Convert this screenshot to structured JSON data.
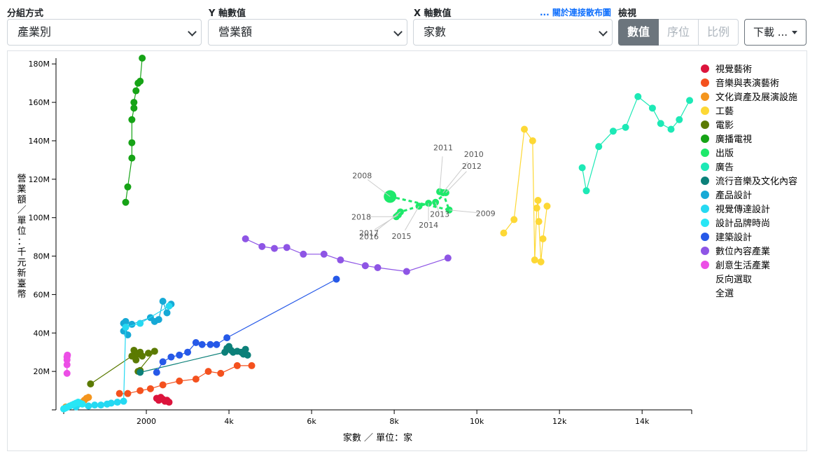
{
  "controls": {
    "group_label": "分組方式",
    "group_value": "產業別",
    "y_label": "Y 軸數值",
    "y_value": "營業額",
    "x_label": "X 軸數值",
    "x_value": "家數",
    "scatter_link": "... 關於連接散布圖",
    "view_label": "檢視",
    "view_buttons": [
      "數值",
      "序位",
      "比例"
    ],
    "download_label": "下載 ..."
  },
  "legend_actions": [
    "反向選取",
    "全選"
  ],
  "chart_data": {
    "type": "scatter",
    "connected": true,
    "xlabel": "家數 ／ 單位：家",
    "ylabel": "營業額 ／ 單位：千元新臺幣",
    "xlim": [
      0,
      15200
    ],
    "ylim": [
      0,
      183000000
    ],
    "x_ticks": [
      0,
      2000,
      4000,
      6000,
      8000,
      10000,
      12000,
      14000
    ],
    "x_tick_labels": [
      "",
      "2000",
      "4k",
      "6k",
      "8k",
      "10k",
      "12k",
      "14k"
    ],
    "y_ticks": [
      20000000,
      40000000,
      60000000,
      80000000,
      100000000,
      120000000,
      140000000,
      160000000,
      180000000
    ],
    "y_tick_labels": [
      "20M",
      "40M",
      "60M",
      "80M",
      "100M",
      "120M",
      "140M",
      "160M",
      "180M"
    ],
    "legend_position": "right",
    "highlight_series": "出版",
    "highlight_year_labels": [
      {
        "year": "2008",
        "x": 7900,
        "y": 111000000
      },
      {
        "year": "2009",
        "x": 9330,
        "y": 104000000
      },
      {
        "year": "2010",
        "x": 9180,
        "y": 113000000
      },
      {
        "year": "2011",
        "x": 9100,
        "y": 113500000
      },
      {
        "year": "2012",
        "x": 9250,
        "y": 113000000
      },
      {
        "year": "2013",
        "x": 9000,
        "y": 108000000
      },
      {
        "year": "2014",
        "x": 8830,
        "y": 107500000
      },
      {
        "year": "2015",
        "x": 8600,
        "y": 106000000
      },
      {
        "year": "2016",
        "x": 8150,
        "y": 103000000
      },
      {
        "year": "2017",
        "x": 8100,
        "y": 101500000
      },
      {
        "year": "2018",
        "x": 8050,
        "y": 100500000
      }
    ],
    "series": [
      {
        "name": "視覺藝術",
        "color": "#dc143c",
        "points": [
          [
            2250,
            6000000
          ],
          [
            2300,
            5000000
          ],
          [
            2350,
            6500000
          ],
          [
            2400,
            5500000
          ],
          [
            2450,
            4500000
          ],
          [
            2500,
            5000000
          ],
          [
            2550,
            4000000
          ]
        ]
      },
      {
        "name": "音樂與表演藝術",
        "color": "#f4511e",
        "points": [
          [
            1350,
            8500000
          ],
          [
            1550,
            8500000
          ],
          [
            1850,
            10000000
          ],
          [
            2100,
            11000000
          ],
          [
            2400,
            13000000
          ],
          [
            2800,
            15000000
          ],
          [
            3200,
            16000000
          ],
          [
            3500,
            20000000
          ],
          [
            3800,
            19000000
          ],
          [
            4200,
            23000000
          ],
          [
            4550,
            23000000
          ]
        ]
      },
      {
        "name": "文化資產及展演設施",
        "color": "#f4951e",
        "points": [
          [
            50,
            1500000
          ],
          [
            150,
            2000000
          ],
          [
            350,
            3000000
          ],
          [
            450,
            4000000
          ],
          [
            500,
            5000000
          ],
          [
            550,
            6000000
          ],
          [
            600,
            6500000
          ]
        ]
      },
      {
        "name": "工藝",
        "color": "#fdd835",
        "points": [
          [
            10650,
            92000000
          ],
          [
            10900,
            99000000
          ],
          [
            11150,
            146000000
          ],
          [
            11350,
            140000000
          ],
          [
            11400,
            78000000
          ],
          [
            11450,
            105000000
          ],
          [
            11480,
            109000000
          ],
          [
            11500,
            98000000
          ],
          [
            11550,
            77000000
          ],
          [
            11600,
            89000000
          ],
          [
            11700,
            106000000
          ]
        ]
      },
      {
        "name": "電影",
        "color": "#5b7a01",
        "points": [
          [
            650,
            13500000
          ],
          [
            1650,
            28000000
          ],
          [
            1700,
            31000000
          ],
          [
            1750,
            26000000
          ],
          [
            1800,
            29000000
          ],
          [
            1850,
            30000000
          ],
          [
            1900,
            28000000
          ],
          [
            2050,
            29500000
          ],
          [
            2200,
            30500000
          ],
          [
            1800,
            20000000
          ],
          [
            1850,
            20500000
          ]
        ]
      },
      {
        "name": "廣播電視",
        "color": "#16a316",
        "points": [
          [
            1500,
            108000000
          ],
          [
            1550,
            116000000
          ],
          [
            1650,
            131000000
          ],
          [
            1650,
            139000000
          ],
          [
            1650,
            151000000
          ],
          [
            1700,
            157000000
          ],
          [
            1700,
            160000000
          ],
          [
            1750,
            166000000
          ],
          [
            1800,
            170000000
          ],
          [
            1850,
            171000000
          ],
          [
            1900,
            183000000
          ]
        ]
      },
      {
        "name": "出版",
        "color": "#1de96b",
        "points": [
          [
            7900,
            111000000
          ],
          [
            9330,
            104000000
          ],
          [
            9180,
            113000000
          ],
          [
            9100,
            113500000
          ],
          [
            9250,
            113000000
          ],
          [
            9000,
            108000000
          ],
          [
            8830,
            107500000
          ],
          [
            8600,
            106000000
          ],
          [
            8150,
            103000000
          ],
          [
            8100,
            101500000
          ],
          [
            8050,
            100500000
          ]
        ]
      },
      {
        "name": "廣告",
        "color": "#1de9b6",
        "points": [
          [
            12550,
            126000000
          ],
          [
            12650,
            114000000
          ],
          [
            12950,
            137000000
          ],
          [
            13300,
            145000000
          ],
          [
            13600,
            147000000
          ],
          [
            13900,
            163000000
          ],
          [
            14250,
            157000000
          ],
          [
            14450,
            149000000
          ],
          [
            14700,
            146000000
          ],
          [
            14900,
            151000000
          ],
          [
            15150,
            161000000
          ]
        ]
      },
      {
        "name": "流行音樂及文化內容",
        "color": "#0c8079",
        "points": [
          [
            1850,
            19500000
          ],
          [
            3900,
            30000000
          ],
          [
            3950,
            32000000
          ],
          [
            4000,
            33000000
          ],
          [
            4050,
            31000000
          ],
          [
            4100,
            30000000
          ],
          [
            4200,
            30500000
          ],
          [
            4300,
            30000000
          ],
          [
            4350,
            29000000
          ],
          [
            4400,
            31500000
          ],
          [
            4450,
            28500000
          ]
        ]
      },
      {
        "name": "產品設計",
        "color": "#16a9d6",
        "points": [
          [
            1450,
            41000000
          ],
          [
            1550,
            39000000
          ],
          [
            1450,
            45000000
          ],
          [
            1500,
            46000000
          ],
          [
            1650,
            44500000
          ],
          [
            2100,
            48000000
          ],
          [
            2200,
            46000000
          ],
          [
            2300,
            47000000
          ],
          [
            2400,
            56500000
          ],
          [
            2500,
            50500000
          ],
          [
            2600,
            55000000
          ]
        ]
      },
      {
        "name": "視覺傳達設計",
        "color": "#25d9f2",
        "points": [
          [
            0,
            500000
          ],
          [
            300,
            1500000
          ],
          [
            600,
            2000000
          ],
          [
            750,
            2500000
          ],
          [
            900,
            2500000
          ],
          [
            1050,
            3000000
          ],
          [
            1150,
            3500000
          ],
          [
            1300,
            4000000
          ],
          [
            1450,
            4500000
          ],
          [
            1500,
            43000000
          ],
          [
            1850,
            45000000
          ],
          [
            2550,
            54000000
          ]
        ]
      },
      {
        "name": "設計品牌時尚",
        "color": "#28e6f5",
        "points": [
          [
            0,
            500000
          ],
          [
            50,
            1000000
          ],
          [
            100,
            1500000
          ],
          [
            150,
            2000000
          ],
          [
            200,
            2500000
          ],
          [
            250,
            3000000
          ],
          [
            300,
            3500000
          ],
          [
            350,
            4000000
          ],
          [
            400,
            3500000
          ],
          [
            450,
            3000000
          ]
        ]
      },
      {
        "name": "建築設計",
        "color": "#2659e8",
        "points": [
          [
            2250,
            19500000
          ],
          [
            2400,
            25000000
          ],
          [
            2600,
            27500000
          ],
          [
            2800,
            28500000
          ],
          [
            3000,
            30000000
          ],
          [
            3200,
            35000000
          ],
          [
            3350,
            34000000
          ],
          [
            3550,
            34000000
          ],
          [
            3700,
            34000000
          ],
          [
            3950,
            37500000
          ],
          [
            6600,
            68000000
          ]
        ]
      },
      {
        "name": "數位內容產業",
        "color": "#8e55e5",
        "points": [
          [
            4400,
            89000000
          ],
          [
            4800,
            85000000
          ],
          [
            5100,
            84000000
          ],
          [
            5400,
            84500000
          ],
          [
            5800,
            81000000
          ],
          [
            6300,
            81000000
          ],
          [
            6700,
            78000000
          ],
          [
            7300,
            75000000
          ],
          [
            7600,
            74000000
          ],
          [
            8300,
            72000000
          ],
          [
            9300,
            79000000
          ]
        ]
      },
      {
        "name": "創意生活產業",
        "color": "#ec4ee6",
        "points": [
          [
            80,
            19000000
          ],
          [
            80,
            23500000
          ],
          [
            80,
            26000000
          ],
          [
            80,
            27500000
          ],
          [
            90,
            28500000
          ]
        ]
      }
    ]
  }
}
